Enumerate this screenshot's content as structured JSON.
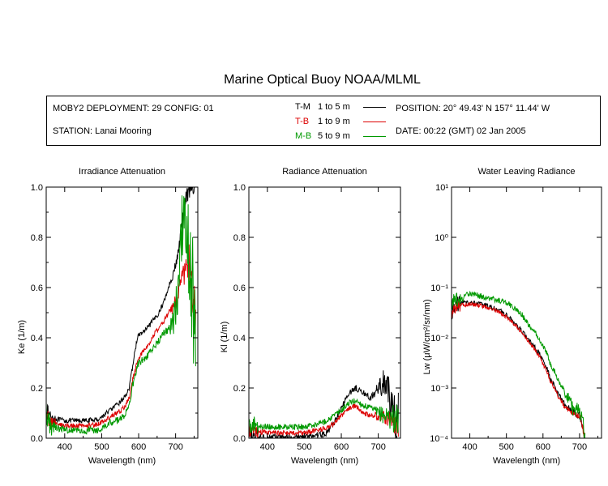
{
  "title": "Marine Optical Buoy NOAA/MLML",
  "info": {
    "deployment": "MOBY2 DEPLOYMENT: 29 CONFIG: 01",
    "station": "STATION: Lanai Mooring",
    "position": "POSITION: 20° 49.43' N   157° 11.44' W",
    "date": "DATE: 00:22 (GMT) 02 Jan 2005",
    "legend": [
      {
        "code": "T-M",
        "range": "1 to 5  m",
        "color": "#000000"
      },
      {
        "code": "T-B",
        "range": "1 to 9  m",
        "color": "#dd0000"
      },
      {
        "code": "M-B",
        "range": "5 to 9  m",
        "color": "#009900"
      }
    ]
  },
  "chart_data": [
    {
      "type": "line",
      "title": "Irradiance Attenuation",
      "xlabel": "Wavelength (nm)",
      "ylabel": "Ke  (1/m)",
      "xlim": [
        350,
        760
      ],
      "ylim": [
        0,
        1.0
      ],
      "yscale": "linear",
      "xticks": [
        400,
        500,
        600,
        700
      ],
      "yticks": [
        {
          "v": 0,
          "t": "0.0"
        },
        {
          "v": 0.2,
          "t": "0.2"
        },
        {
          "v": 0.4,
          "t": "0.4"
        },
        {
          "v": 0.6,
          "t": "0.6"
        },
        {
          "v": 0.8,
          "t": "0.8"
        },
        {
          "v": 1.0,
          "t": "1.0"
        }
      ],
      "x": [
        350,
        360,
        370,
        380,
        400,
        430,
        460,
        490,
        505,
        520,
        540,
        560,
        575,
        585,
        595,
        600,
        610,
        625,
        640,
        655,
        670,
        685,
        695,
        705,
        715,
        725,
        735,
        745,
        755
      ],
      "series": [
        {
          "name": "T-M",
          "color": "#000000",
          "noise": 0.01,
          "noiseEnd": 0.06,
          "y": [
            0.11,
            0.09,
            0.08,
            0.075,
            0.07,
            0.07,
            0.07,
            0.075,
            0.09,
            0.11,
            0.13,
            0.16,
            0.2,
            0.3,
            0.39,
            0.41,
            0.42,
            0.44,
            0.47,
            0.5,
            0.55,
            0.62,
            0.66,
            0.72,
            0.82,
            0.93,
            1.0,
            1.0,
            1.0
          ]
        },
        {
          "name": "T-B",
          "color": "#dd0000",
          "noise": 0.01,
          "noiseEnd": 0.12,
          "y": [
            0.09,
            0.07,
            0.06,
            0.055,
            0.05,
            0.05,
            0.05,
            0.055,
            0.07,
            0.08,
            0.1,
            0.12,
            0.16,
            0.24,
            0.3,
            0.32,
            0.34,
            0.37,
            0.41,
            0.44,
            0.47,
            0.51,
            0.52,
            0.56,
            0.62,
            0.68,
            0.7,
            0.6,
            0.5
          ]
        },
        {
          "name": "M-B",
          "color": "#009900",
          "noise": 0.015,
          "noiseEnd": 0.3,
          "y": [
            0.1,
            0.06,
            0.05,
            0.04,
            0.035,
            0.03,
            0.03,
            0.035,
            0.045,
            0.06,
            0.07,
            0.09,
            0.14,
            0.22,
            0.28,
            0.3,
            0.31,
            0.33,
            0.36,
            0.39,
            0.42,
            0.44,
            0.47,
            0.55,
            0.8,
            0.95,
            0.75,
            0.55,
            0.45
          ]
        }
      ]
    },
    {
      "type": "line",
      "title": "Radiance Attenuation",
      "xlabel": "Wavelength (nm)",
      "ylabel": "Kl  (1/m)",
      "xlim": [
        350,
        760
      ],
      "ylim": [
        0,
        1.0
      ],
      "yscale": "linear",
      "xticks": [
        400,
        500,
        600,
        700
      ],
      "yticks": [
        {
          "v": 0,
          "t": "0.0"
        },
        {
          "v": 0.2,
          "t": "0.2"
        },
        {
          "v": 0.4,
          "t": "0.4"
        },
        {
          "v": 0.6,
          "t": "0.6"
        },
        {
          "v": 0.8,
          "t": "0.8"
        },
        {
          "v": 1.0,
          "t": "1.0"
        }
      ],
      "x": [
        350,
        380,
        420,
        460,
        500,
        530,
        560,
        580,
        600,
        620,
        640,
        660,
        680,
        700,
        720,
        740,
        755
      ],
      "series": [
        {
          "name": "T-M",
          "color": "#000000",
          "noise": 0.012,
          "noiseEnd": 0.12,
          "y": [
            0.01,
            0.005,
            0.005,
            0.005,
            0.005,
            0.01,
            0.02,
            0.06,
            0.12,
            0.18,
            0.2,
            0.18,
            0.16,
            0.2,
            0.22,
            0.1,
            0.08
          ]
        },
        {
          "name": "T-B",
          "color": "#dd0000",
          "noise": 0.01,
          "noiseEnd": 0.05,
          "y": [
            0.03,
            0.025,
            0.02,
            0.02,
            0.02,
            0.03,
            0.04,
            0.06,
            0.09,
            0.12,
            0.13,
            0.1,
            0.09,
            0.09,
            0.08,
            0.06,
            0.05
          ]
        },
        {
          "name": "M-B",
          "color": "#009900",
          "noise": 0.012,
          "noiseEnd": 0.07,
          "y": [
            0.05,
            0.05,
            0.045,
            0.045,
            0.045,
            0.055,
            0.07,
            0.09,
            0.11,
            0.14,
            0.15,
            0.13,
            0.12,
            0.1,
            0.09,
            0.08,
            0.07
          ]
        }
      ]
    },
    {
      "type": "line",
      "title": "Water Leaving Radiance",
      "xlabel": "Wavelength (nm)",
      "ylabel": "Lw  (μW/cm²/sr/nm)",
      "xlim": [
        350,
        760
      ],
      "ylim": [
        0.0001,
        10
      ],
      "yscale": "log",
      "xticks": [
        400,
        500,
        600,
        700
      ],
      "yticks": [
        {
          "v": 0.0001,
          "t": "10⁻⁴"
        },
        {
          "v": 0.001,
          "t": "10⁻³"
        },
        {
          "v": 0.01,
          "t": "10⁻²"
        },
        {
          "v": 0.1,
          "t": "10⁻¹"
        },
        {
          "v": 1,
          "t": "10⁰"
        },
        {
          "v": 10,
          "t": "10¹"
        }
      ],
      "x": [
        350,
        360,
        380,
        400,
        420,
        440,
        460,
        480,
        500,
        520,
        540,
        560,
        580,
        600,
        620,
        640,
        660,
        680,
        700,
        710,
        715
      ],
      "series": [
        {
          "name": "T-M",
          "color": "#000000",
          "noise": 0.05,
          "noiseEnd": 0.12,
          "y": [
            0.03,
            0.045,
            0.05,
            0.05,
            0.048,
            0.045,
            0.04,
            0.035,
            0.028,
            0.02,
            0.014,
            0.009,
            0.006,
            0.0035,
            0.0015,
            0.0008,
            0.00045,
            0.00035,
            0.0003,
            0.00015,
            0.0001
          ]
        },
        {
          "name": "T-B",
          "color": "#dd0000",
          "noise": 0.04,
          "noiseEnd": 0.08,
          "y": [
            0.028,
            0.04,
            0.045,
            0.047,
            0.045,
            0.042,
            0.037,
            0.032,
            0.026,
            0.019,
            0.013,
            0.0085,
            0.0055,
            0.003,
            0.0014,
            0.0007,
            0.0004,
            0.00033,
            0.00028,
            0.00014,
            0.0001
          ]
        },
        {
          "name": "M-B",
          "color": "#009900",
          "noise": 0.06,
          "noiseEnd": 0.25,
          "y": [
            0.04,
            0.055,
            0.06,
            0.08,
            0.07,
            0.065,
            0.06,
            0.055,
            0.05,
            0.04,
            0.03,
            0.018,
            0.012,
            0.007,
            0.003,
            0.0015,
            0.0008,
            0.0004,
            0.0003,
            0.00015,
            0.0001
          ]
        }
      ]
    }
  ]
}
